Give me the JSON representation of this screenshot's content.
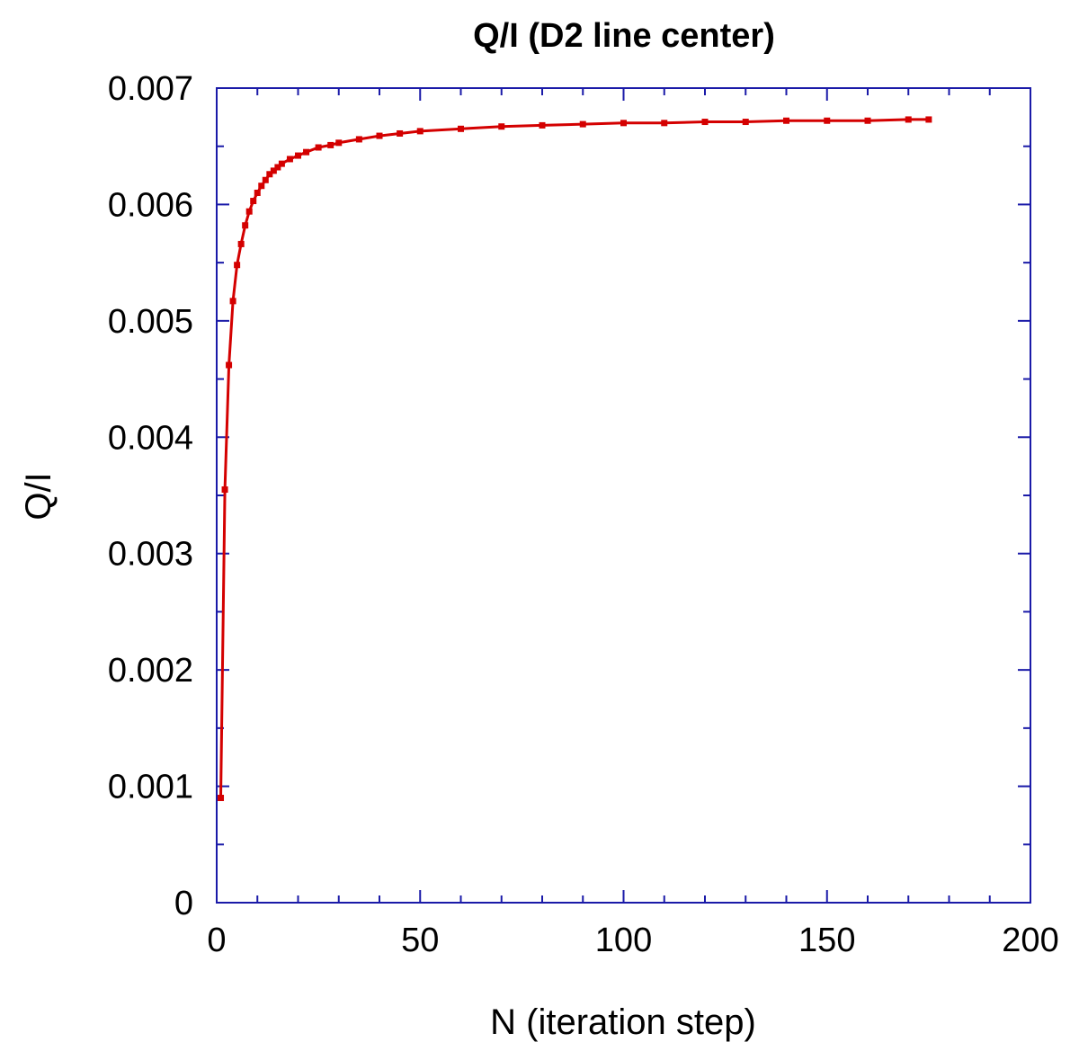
{
  "chart_data": {
    "type": "line",
    "title": "Q/I (D2 line center)",
    "xlabel": "N (iteration step)",
    "ylabel": "Q/I",
    "xlim": [
      0,
      200
    ],
    "ylim": [
      0,
      0.007
    ],
    "x_ticks": [
      0,
      50,
      100,
      150,
      200
    ],
    "x_tick_labels": [
      "0",
      "50",
      "100",
      "150",
      "200"
    ],
    "y_ticks": [
      0,
      0.001,
      0.002,
      0.003,
      0.004,
      0.005,
      0.006,
      0.007
    ],
    "y_tick_labels": [
      "0",
      "0.001",
      "0.002",
      "0.003",
      "0.004",
      "0.005",
      "0.006",
      "0.007"
    ],
    "grid": false,
    "colors": {
      "axis": "#1a1aa8",
      "series": "#d40000"
    },
    "series": [
      {
        "x": [
          1,
          2,
          3,
          4,
          5,
          6,
          7,
          8,
          9,
          10,
          11,
          12,
          13,
          14,
          15,
          16,
          18,
          20,
          22,
          25,
          28,
          30,
          35,
          40,
          45,
          50,
          60,
          70,
          80,
          90,
          100,
          110,
          120,
          130,
          140,
          150,
          160,
          170,
          175
        ],
        "y": [
          0.0009,
          0.00355,
          0.00462,
          0.00517,
          0.00548,
          0.00566,
          0.00582,
          0.00594,
          0.00603,
          0.0061,
          0.00616,
          0.00621,
          0.00626,
          0.00629,
          0.00632,
          0.00635,
          0.00639,
          0.00642,
          0.00645,
          0.00649,
          0.00651,
          0.00653,
          0.00656,
          0.00659,
          0.00661,
          0.00663,
          0.00665,
          0.00667,
          0.00668,
          0.00669,
          0.0067,
          0.0067,
          0.00671,
          0.00671,
          0.00672,
          0.00672,
          0.00672,
          0.00673,
          0.00673
        ]
      }
    ]
  }
}
